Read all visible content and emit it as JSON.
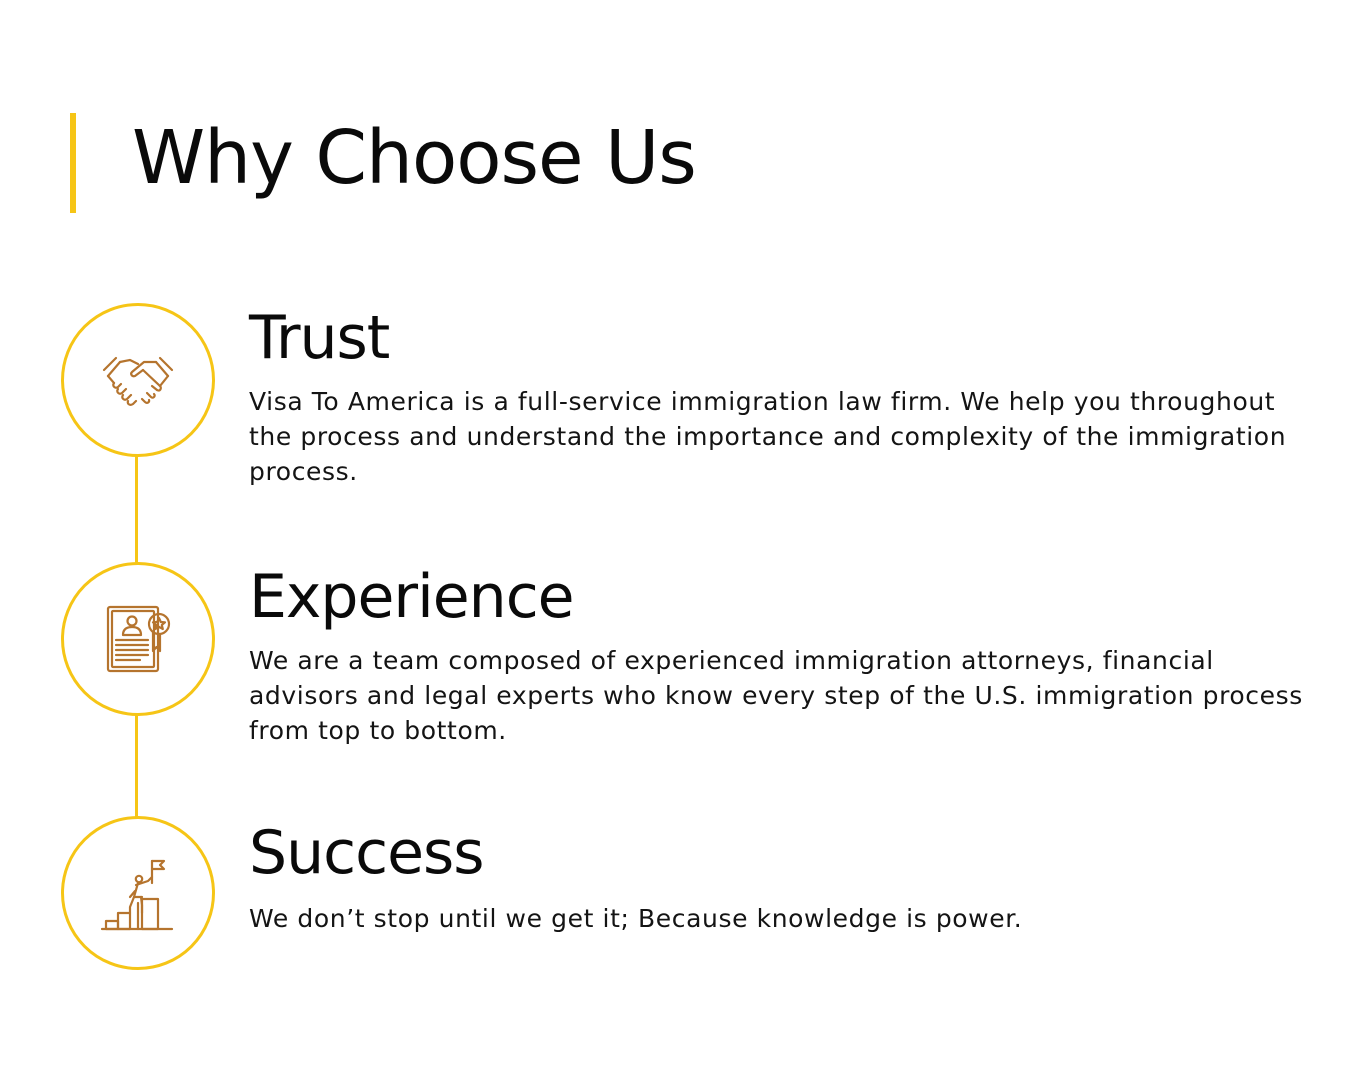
{
  "page": {
    "title": "Why Choose Us"
  },
  "colors": {
    "accent": "#F6C516",
    "icon": "#B5742E"
  },
  "features": [
    {
      "icon": "handshake-icon",
      "title": "Trust",
      "description": "Visa To America is a full-service immigration law firm. We help you throughout the process and understand the importance and complexity of the immigration process."
    },
    {
      "icon": "certificate-icon",
      "title": "Experience",
      "description": "We are a team composed of experienced immigration attorneys, financial advisors and legal experts who know every step of the U.S. immigration process from top to bottom."
    },
    {
      "icon": "climbing-success-icon",
      "title": "Success",
      "description": "We don’t stop until we get it; Because knowledge is power."
    }
  ]
}
